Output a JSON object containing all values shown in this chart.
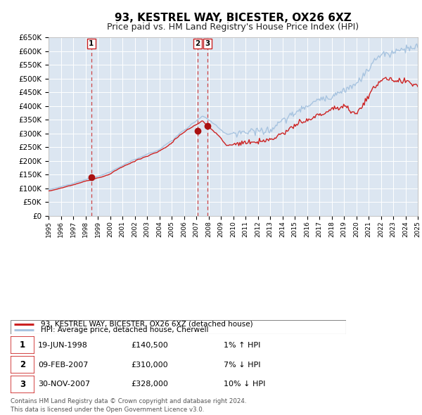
{
  "title": "93, KESTREL WAY, BICESTER, OX26 6XZ",
  "subtitle": "Price paid vs. HM Land Registry's House Price Index (HPI)",
  "title_fontsize": 11,
  "subtitle_fontsize": 9,
  "background_color": "#ffffff",
  "plot_bg_color": "#dce6f1",
  "grid_color": "#ffffff",
  "hpi_line_color": "#a8c4e0",
  "price_line_color": "#cc2222",
  "marker_color": "#aa1111",
  "vline_color": "#cc3333",
  "ylim": [
    0,
    650000
  ],
  "yticks": [
    0,
    50000,
    100000,
    150000,
    200000,
    250000,
    300000,
    350000,
    400000,
    450000,
    500000,
    550000,
    600000,
    650000
  ],
  "transactions": [
    {
      "label": "1",
      "date": "19-JUN-1998",
      "price": 140500,
      "year": 1998.47,
      "hpi_pct": "1% ↑ HPI"
    },
    {
      "label": "2",
      "date": "09-FEB-2007",
      "price": 310000,
      "year": 2007.11,
      "hpi_pct": "7% ↓ HPI"
    },
    {
      "label": "3",
      "date": "30-NOV-2007",
      "price": 328000,
      "year": 2007.92,
      "hpi_pct": "10% ↓ HPI"
    }
  ],
  "legend_entries": [
    "93, KESTREL WAY, BICESTER, OX26 6XZ (detached house)",
    "HPI: Average price, detached house, Cherwell"
  ],
  "footer_lines": [
    "Contains HM Land Registry data © Crown copyright and database right 2024.",
    "This data is licensed under the Open Government Licence v3.0."
  ],
  "xmin": 1995,
  "xmax": 2025
}
